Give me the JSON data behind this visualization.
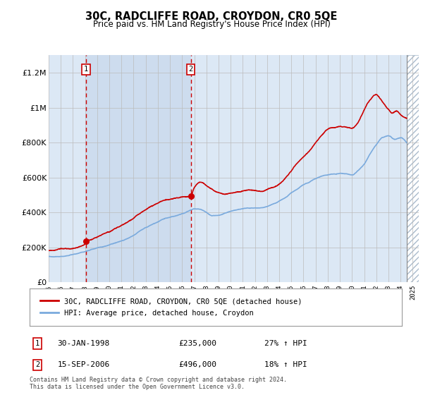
{
  "title": "30C, RADCLIFFE ROAD, CROYDON, CR0 5QE",
  "subtitle": "Price paid vs. HM Land Registry's House Price Index (HPI)",
  "ylim": [
    0,
    1300000
  ],
  "xlim_start": 1995.0,
  "xlim_end": 2025.5,
  "yticks": [
    0,
    200000,
    400000,
    600000,
    800000,
    1000000,
    1200000
  ],
  "ytick_labels": [
    "£0",
    "£200K",
    "£400K",
    "£600K",
    "£800K",
    "£1M",
    "£1.2M"
  ],
  "xtick_years": [
    1995,
    1996,
    1997,
    1998,
    1999,
    2000,
    2001,
    2002,
    2003,
    2004,
    2005,
    2006,
    2007,
    2008,
    2009,
    2010,
    2011,
    2012,
    2013,
    2014,
    2015,
    2016,
    2017,
    2018,
    2019,
    2020,
    2021,
    2022,
    2023,
    2024,
    2025
  ],
  "sale1_x": 1998.08,
  "sale1_y": 235000,
  "sale2_x": 2006.71,
  "sale2_y": 496000,
  "vline1_x": 1998.08,
  "vline2_x": 2006.71,
  "legend_label_red": "30C, RADCLIFFE ROAD, CROYDON, CR0 5QE (detached house)",
  "legend_label_blue": "HPI: Average price, detached house, Croydon",
  "footnote": "Contains HM Land Registry data © Crown copyright and database right 2024.\nThis data is licensed under the Open Government Licence v3.0.",
  "red_color": "#cc0000",
  "blue_color": "#7aaadd",
  "bg_color": "#dce8f5",
  "grid_color": "#bbbbbb",
  "hatch_start": 2024.5
}
